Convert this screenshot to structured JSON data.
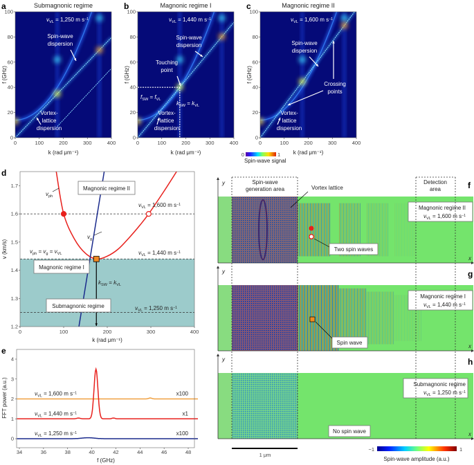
{
  "panel_letters": {
    "a": "a",
    "b": "b",
    "c": "c",
    "d": "d",
    "e": "e",
    "f": "f",
    "g": "g",
    "h": "h"
  },
  "chart_data": [
    {
      "panel": "a",
      "type": "heatmap",
      "title": "Submagnonic regime",
      "xlabel": "k (rad μm⁻¹)",
      "ylabel": "f (GHz)",
      "xlim": [
        0,
        400
      ],
      "ylim": [
        0,
        100
      ],
      "xticks": [
        "0",
        "100",
        "200",
        "300",
        "400"
      ],
      "yticks": [
        "0",
        "20",
        "40",
        "60",
        "80",
        "100"
      ],
      "v_VL_km_per_s": 1.25,
      "vvl": [
        {
          "t": "v",
          "s": "i"
        },
        {
          "t": "VL",
          "s": "sub"
        },
        {
          "t": " = 1,250 m s"
        },
        {
          "t": "−1",
          "s": "sup"
        }
      ],
      "sw_label": [
        "Spin-wave",
        "dispersion"
      ],
      "vl_label": [
        "Vortex-",
        "lattice",
        "dispersion"
      ]
    },
    {
      "panel": "b",
      "type": "heatmap",
      "title": "Magnonic regime I",
      "xlabel": "k (rad μm⁻¹)",
      "ylabel": "f (GHz)",
      "xlim": [
        0,
        400
      ],
      "ylim": [
        0,
        100
      ],
      "xticks": [
        "0",
        "100",
        "200",
        "300",
        "400"
      ],
      "yticks": [
        "0",
        "20",
        "40",
        "60",
        "80",
        "100"
      ],
      "v_VL_km_per_s": 1.44,
      "vvl": [
        {
          "t": "v",
          "s": "i"
        },
        {
          "t": "VL",
          "s": "sub"
        },
        {
          "t": " = 1,440 m s"
        },
        {
          "t": "−1",
          "s": "sup"
        }
      ],
      "sw_label": [
        "Spin-wave",
        "dispersion"
      ],
      "vl_label": [
        "Vortex-",
        "lattice",
        "dispersion"
      ],
      "touching_label": [
        "Touching",
        "point"
      ],
      "touching_point": {
        "k": 175,
        "f": 40
      },
      "f_eq": [
        {
          "t": "f",
          "s": "i"
        },
        {
          "t": "SW",
          "s": "sub"
        },
        {
          "t": " = "
        },
        {
          "t": "f",
          "s": "i"
        },
        {
          "t": "VL",
          "s": "sub"
        }
      ],
      "k_eq": [
        {
          "t": "k",
          "s": "i"
        },
        {
          "t": "SW",
          "s": "sub"
        },
        {
          "t": " = "
        },
        {
          "t": "k",
          "s": "i"
        },
        {
          "t": "VL",
          "s": "sub"
        }
      ]
    },
    {
      "panel": "c",
      "type": "heatmap",
      "title": "Magnonic regime II",
      "xlabel": "k (rad μm⁻¹)",
      "ylabel": "f (GHz)",
      "xlim": [
        0,
        400
      ],
      "ylim": [
        0,
        100
      ],
      "xticks": [
        "0",
        "100",
        "200",
        "300",
        "400"
      ],
      "yticks": [
        "0",
        "20",
        "40",
        "60",
        "80",
        "100"
      ],
      "v_VL_km_per_s": 1.6,
      "vvl": [
        {
          "t": "v",
          "s": "i"
        },
        {
          "t": "VL",
          "s": "sub"
        },
        {
          "t": " = 1,600 m s"
        },
        {
          "t": "−1",
          "s": "sup"
        }
      ],
      "sw_label": [
        "Spin-wave",
        "dispersion"
      ],
      "vl_label": [
        "Vortex-",
        "lattice",
        "dispersion"
      ],
      "crossing_label": [
        "Crossing",
        "points"
      ],
      "crossing_points": [
        {
          "k": 103,
          "f": 26
        },
        {
          "k": 305,
          "f": 78
        }
      ],
      "colorbar": {
        "min": "0",
        "max": "1",
        "label": "Spin-wave signal"
      }
    },
    {
      "panel": "d",
      "type": "line",
      "xlabel": "k (rad μm⁻¹)",
      "ylabel": "v (km/s)",
      "xlim": [
        0,
        400
      ],
      "ylim": [
        1.2,
        1.75
      ],
      "xticks": [
        "0",
        "100",
        "200",
        "300",
        "400"
      ],
      "yticks": [
        "1.2",
        "1.3",
        "1.4",
        "1.5",
        "1.6",
        "1.7"
      ],
      "series": [
        {
          "name": "v_ph",
          "color": "#e8201c",
          "points": [
            [
              83,
              1.75
            ],
            [
              100,
              1.6
            ],
            [
              125,
              1.51
            ],
            [
              150,
              1.46
            ],
            [
              175,
              1.44
            ],
            [
              200,
              1.45
            ],
            [
              225,
              1.475
            ],
            [
              250,
              1.515
            ],
            [
              275,
              1.56
            ],
            [
              295,
              1.6
            ],
            [
              330,
              1.68
            ],
            [
              359,
              1.75
            ]
          ]
        },
        {
          "name": "v_g",
          "color": "#1a2a8c",
          "points": [
            [
              135,
              1.2
            ],
            [
              193,
              1.75
            ]
          ]
        }
      ],
      "hlines": [
        1.6,
        1.44,
        1.25
      ],
      "shaded_below": 1.44,
      "shade_color": "#9ccbcb",
      "markers": [
        {
          "k": 100,
          "v": 1.6,
          "style": "filled-circle",
          "color": "#e8201c"
        },
        {
          "k": 295,
          "v": 1.6,
          "style": "open-circle",
          "color": "#e8201c"
        },
        {
          "k": 175,
          "v": 1.44,
          "style": "square",
          "color": "#f08a24"
        }
      ],
      "vph_label": [
        {
          "t": "v",
          "s": "i"
        },
        {
          "t": "ph",
          "s": "sub"
        }
      ],
      "vg_label": [
        {
          "t": "v",
          "s": "i"
        },
        {
          "t": "g",
          "s": "sub"
        }
      ],
      "eq_label": [
        {
          "t": "v",
          "s": "i"
        },
        {
          "t": "ph",
          "s": "sub"
        },
        {
          "t": " = "
        },
        {
          "t": "v",
          "s": "i"
        },
        {
          "t": "g",
          "s": "sub"
        },
        {
          "t": " = "
        },
        {
          "t": "v",
          "s": "i"
        },
        {
          "t": "VL",
          "s": "sub"
        }
      ],
      "k_eq": [
        {
          "t": "k",
          "s": "i"
        },
        {
          "t": "SW",
          "s": "sub"
        },
        {
          "t": " = "
        },
        {
          "t": "k",
          "s": "i"
        },
        {
          "t": "VL",
          "s": "sub"
        }
      ],
      "v1600": [
        {
          "t": "v",
          "s": "i"
        },
        {
          "t": "VL",
          "s": "sub"
        },
        {
          "t": " = 1,600 m s"
        },
        {
          "t": "−1",
          "s": "sup"
        }
      ],
      "v1440": [
        {
          "t": "v",
          "s": "i"
        },
        {
          "t": "VL",
          "s": "sub"
        },
        {
          "t": " = 1,440 m s"
        },
        {
          "t": "−1",
          "s": "sup"
        }
      ],
      "v1250": [
        {
          "t": "v",
          "s": "i"
        },
        {
          "t": "VL",
          "s": "sub"
        },
        {
          "t": " = 1,250 m s"
        },
        {
          "t": "−1",
          "s": "sup"
        }
      ],
      "regime_boxes": [
        "Magnonic regime II",
        "Magnonic regime I",
        "Submagnonic regime"
      ]
    },
    {
      "panel": "e",
      "type": "line",
      "xlabel": "f (GHz)",
      "ylabel": "FFT power (a.u.)",
      "xlim": [
        33.8,
        48.8
      ],
      "ylim": [
        -0.5,
        4.5
      ],
      "xticks": [
        "34",
        "36",
        "38",
        "40",
        "42",
        "44",
        "46",
        "48"
      ],
      "yticks": [
        "0",
        "1",
        "2",
        "3",
        "4"
      ],
      "series": [
        {
          "name": "v_VL = 1,600 m/s",
          "color": "#f0a040",
          "offset": 2,
          "scale": "x100",
          "peaks": [
            {
              "center": 44.85,
              "height": 0.05,
              "width": 0.12
            }
          ],
          "label": [
            {
              "t": "v",
              "s": "i"
            },
            {
              "t": "VL",
              "s": "sub"
            },
            {
              "t": " = 1,600 m s"
            },
            {
              "t": "−1",
              "s": "sup"
            }
          ]
        },
        {
          "name": "v_VL = 1,440 m/s",
          "color": "#e8201c",
          "offset": 1,
          "scale": "x1",
          "peaks": [
            {
              "center": 40.35,
              "height": 2.5,
              "width": 0.16
            },
            {
              "center": 38.9,
              "height": 0.04,
              "width": 0.15
            },
            {
              "center": 41.8,
              "height": 0.04,
              "width": 0.12
            }
          ],
          "label": [
            {
              "t": "v",
              "s": "i"
            },
            {
              "t": "VL",
              "s": "sub"
            },
            {
              "t": " = 1,440 m s"
            },
            {
              "t": "−1",
              "s": "sup"
            }
          ]
        },
        {
          "name": "v_VL = 1,250 m/s",
          "color": "#1a2a8c",
          "offset": 0,
          "scale": "x100",
          "peaks": [
            {
              "center": 39.7,
              "height": 0.05,
              "width": 0.5
            }
          ],
          "label": [
            {
              "t": "v",
              "s": "i"
            },
            {
              "t": "VL",
              "s": "sub"
            },
            {
              "t": " = 1,250 m s"
            },
            {
              "t": "−1",
              "s": "sup"
            }
          ]
        }
      ]
    }
  ],
  "simulation": {
    "generation_area": [
      "Spin-wave",
      "generation area"
    ],
    "detection_area": [
      "Detection",
      "area"
    ],
    "vortex_lattice": "Vortex lattice",
    "axis_y": "y",
    "axis_x": "x",
    "panels": [
      {
        "panel": "f",
        "regime": "Magnonic regime II",
        "vvl": [
          {
            "t": "v",
            "s": "i"
          },
          {
            "t": "VL",
            "s": "sub"
          },
          {
            "t": " = 1,600 m s"
          },
          {
            "t": "−1",
            "s": "sup"
          }
        ],
        "callout": "Two spin waves"
      },
      {
        "panel": "g",
        "regime": "Magnonic regime I",
        "vvl": [
          {
            "t": "v",
            "s": "i"
          },
          {
            "t": "VL",
            "s": "sub"
          },
          {
            "t": " = 1,440 m s"
          },
          {
            "t": "−1",
            "s": "sup"
          }
        ],
        "callout": "Spin wave"
      },
      {
        "panel": "h",
        "regime": "Submagnonic regime",
        "vvl": [
          {
            "t": "v",
            "s": "i"
          },
          {
            "t": "VL",
            "s": "sub"
          },
          {
            "t": " = 1,250 m s"
          },
          {
            "t": "−1",
            "s": "sup"
          }
        ],
        "callout": "No spin wave"
      }
    ],
    "scale_bar": "1 μm",
    "colorbar": {
      "min": "−1",
      "max": "1",
      "label": "Spin-wave amplitude (a.u.)"
    }
  }
}
